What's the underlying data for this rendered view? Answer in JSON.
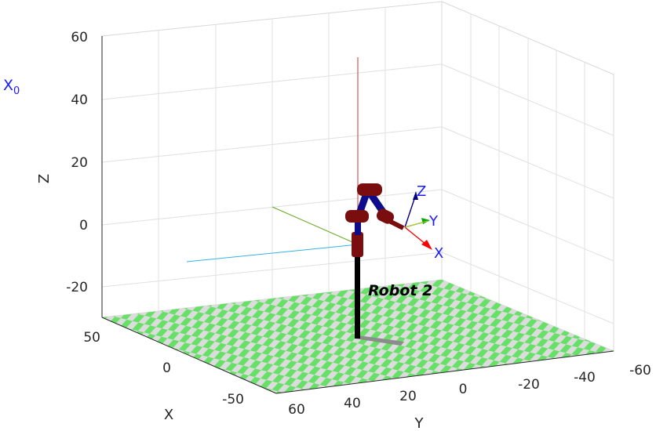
{
  "frame_label": {
    "main": "X",
    "sub": "0"
  },
  "axes": {
    "z_label": "Z",
    "x_label": "X",
    "y_label": "Y",
    "z_ticks": [
      "60",
      "40",
      "20",
      "0",
      "-20"
    ],
    "x_ticks": [
      "50",
      "0",
      "-50"
    ],
    "y_ticks": [
      "60",
      "40",
      "20",
      "0",
      "-20",
      "-40",
      "-60"
    ]
  },
  "robot": {
    "name": "Robot 2",
    "tool_frame": {
      "z": "Z",
      "y": "Y",
      "x": "X"
    }
  },
  "colors": {
    "floor_check_a": "#66e066",
    "floor_check_b": "#dcdcdc",
    "link": "#0d0d8c",
    "joint": "#7a0d0d",
    "pedestal": "#000000",
    "frame_x": "#ff0000",
    "frame_y": "#00aa00",
    "frame_z": "#00007f",
    "shadow": "#8c8c8c",
    "proj_x": "#33b3e6",
    "proj_y": "#66aa22",
    "proj_z": "#cc3333"
  }
}
